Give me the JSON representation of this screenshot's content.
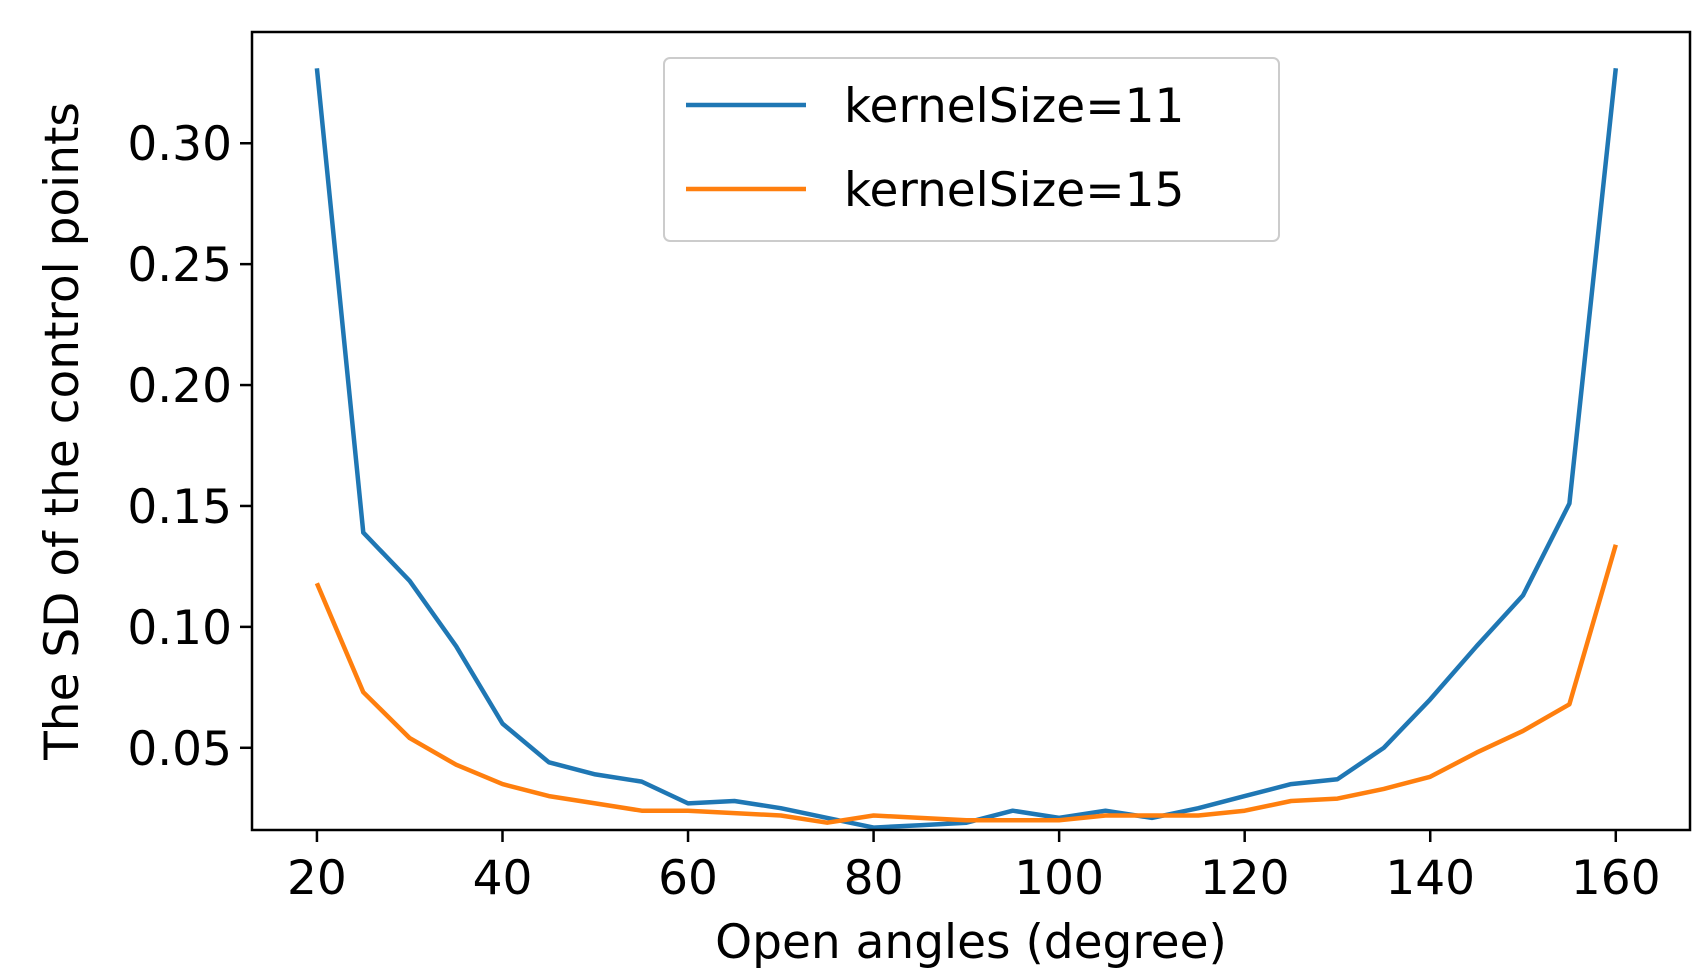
{
  "chart_data": {
    "type": "line",
    "title": "",
    "xlabel": "Open angles (degree)",
    "ylabel": "The SD of the control points",
    "xlim": [
      13,
      168
    ],
    "ylim": [
      0.016,
      0.346
    ],
    "xticks": [
      20,
      40,
      60,
      80,
      100,
      120,
      140,
      160
    ],
    "xtick_labels": [
      "20",
      "40",
      "60",
      "80",
      "100",
      "120",
      "140",
      "160"
    ],
    "yticks": [
      0.05,
      0.1,
      0.15,
      0.2,
      0.25,
      0.3
    ],
    "ytick_labels": [
      "0.05",
      "0.10",
      "0.15",
      "0.20",
      "0.25",
      "0.30"
    ],
    "grid": false,
    "legend_position": "top-center",
    "x": [
      20,
      25,
      30,
      35,
      40,
      45,
      50,
      55,
      60,
      65,
      70,
      75,
      80,
      85,
      90,
      95,
      100,
      105,
      110,
      115,
      120,
      125,
      130,
      135,
      140,
      145,
      150,
      155,
      160
    ],
    "series": [
      {
        "name": "kernelSize=11",
        "color": "#1f77b4",
        "values": [
          0.331,
          0.139,
          0.119,
          0.092,
          0.06,
          0.044,
          0.039,
          0.036,
          0.027,
          0.028,
          0.025,
          0.021,
          0.017,
          0.018,
          0.019,
          0.024,
          0.021,
          0.024,
          0.021,
          0.025,
          0.03,
          0.035,
          0.037,
          0.05,
          0.07,
          0.092,
          0.113,
          0.151,
          0.331
        ]
      },
      {
        "name": "kernelSize=15",
        "color": "#ff7f0e",
        "values": [
          0.118,
          0.073,
          0.054,
          0.043,
          0.035,
          0.03,
          0.027,
          0.024,
          0.024,
          0.023,
          0.022,
          0.019,
          0.022,
          0.021,
          0.02,
          0.02,
          0.02,
          0.022,
          0.022,
          0.022,
          0.024,
          0.028,
          0.029,
          0.033,
          0.038,
          0.048,
          0.057,
          0.068,
          0.134
        ]
      }
    ]
  }
}
